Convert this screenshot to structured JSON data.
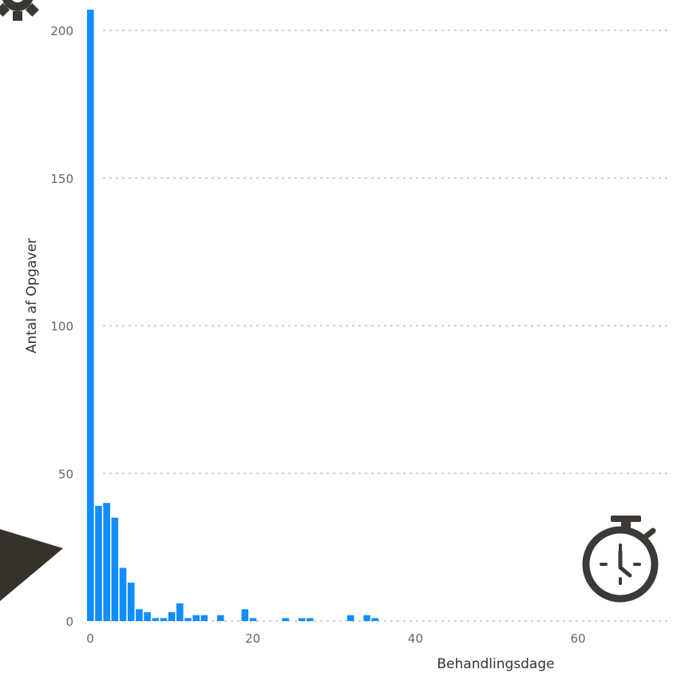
{
  "chart_data": {
    "type": "bar",
    "title": "",
    "xlabel": "Behandlingsdage",
    "ylabel": "Antal af Opgaver",
    "xlim": [
      0,
      72
    ],
    "ylim": [
      0,
      210
    ],
    "x_ticks": [
      0,
      20,
      40,
      60
    ],
    "y_ticks": [
      0,
      50,
      100,
      150,
      200
    ],
    "grid": "horizontal dotted",
    "bar_color": "#118dff",
    "x": [
      0,
      1,
      2,
      3,
      4,
      5,
      6,
      7,
      8,
      9,
      10,
      11,
      12,
      13,
      14,
      16,
      19,
      20,
      24,
      26,
      27,
      32,
      34,
      35
    ],
    "values": [
      207,
      39,
      40,
      35,
      18,
      13,
      4,
      3,
      1,
      1,
      3,
      6,
      1,
      2,
      2,
      2,
      4,
      1,
      1,
      1,
      1,
      2,
      2,
      1
    ]
  },
  "decorations": {
    "gear_color": "#3a3834",
    "arrow_color": "#36322b",
    "stopwatch_color": "#3d3a35",
    "icons": [
      "gear-icon",
      "play-arrow-icon",
      "stopwatch-icon"
    ]
  }
}
